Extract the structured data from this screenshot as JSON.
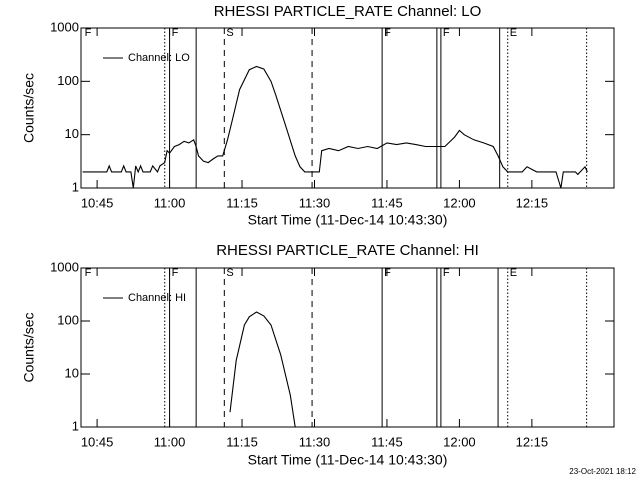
{
  "chart_data": [
    {
      "type": "line",
      "title": "RHESSI PARTICLE_RATE Channel: LO",
      "xlabel": "Start Time (11-Dec-14 10:43:30)",
      "ylabel": "Counts/sec",
      "x": [
        "10:42",
        "10:47",
        "10:47:30",
        "10:48",
        "10:50",
        "10:50:30",
        "10:51",
        "10:52",
        "10:52:30",
        "10:53",
        "10:53:30",
        "10:54",
        "10:54:30",
        "10:56",
        "10:56:30",
        "10:57:30",
        "10:58",
        "10:59",
        "10:59:30",
        "11:00",
        "11:01",
        "11:02",
        "11:03",
        "11:04",
        "11:05",
        "11:05:30",
        "11:06",
        "11:07",
        "11:08",
        "11:09",
        "11:10",
        "11:11",
        "11:12",
        "11:13",
        "11:14:30",
        "11:16:30",
        "11:18",
        "11:19:30",
        "11:21",
        "11:22",
        "11:24",
        "11:26",
        "11:27",
        "11:28",
        "11:31",
        "11:31:30",
        "11:33",
        "11:35",
        "11:37",
        "11:39",
        "11:41",
        "11:43",
        "11:45",
        "11:47",
        "11:49",
        "11:51",
        "11:53",
        "11:55",
        "11:57",
        "11:59",
        "12:00",
        "12:01",
        "12:03",
        "12:05",
        "12:07",
        "12:08",
        "12:09",
        "12:10",
        "12:13",
        "12:14",
        "12:16",
        "12:20",
        "12:21",
        "12:21:30",
        "12:24",
        "12:24:30",
        "12:26",
        "12:26:30"
      ],
      "series": [
        {
          "name": "Channel: LO",
          "color": "#000000",
          "values": [
            2,
            2,
            2.6,
            2,
            2,
            2.6,
            2,
            2,
            1,
            2.6,
            2,
            2.6,
            2,
            2,
            2.6,
            2,
            2.6,
            3,
            5,
            4.5,
            6,
            6.5,
            7.5,
            7,
            8,
            6,
            4,
            3.2,
            3,
            3.5,
            4,
            4,
            8,
            19,
            70,
            165,
            190,
            170,
            100,
            55,
            15,
            4,
            2.5,
            2,
            2,
            5,
            5.5,
            5,
            6,
            5.5,
            6,
            5.5,
            7,
            6.5,
            7,
            6.5,
            6,
            6,
            6,
            9,
            12,
            10,
            8,
            7,
            6,
            4,
            2.5,
            2,
            2,
            2.5,
            2,
            2,
            1,
            2,
            2,
            1.8,
            2.5,
            2
          ]
        }
      ],
      "xlim": [
        "10:41:40",
        "12:32"
      ],
      "xticks": [
        "10:45",
        "11:00",
        "11:15",
        "11:30",
        "11:45",
        "12:00",
        "12:15"
      ],
      "ylim": [
        1,
        1000
      ],
      "yticks": [
        1,
        10,
        100,
        1000
      ],
      "log_y": true,
      "legend": "upper left",
      "markers": [
        {
          "x": "10:42",
          "label": "F"
        },
        {
          "x": "10:59",
          "style": "dotted"
        },
        {
          "x": "11:00",
          "style": "solid",
          "label": "F"
        },
        {
          "x": "11:05:30",
          "style": "solid"
        },
        {
          "x": "11:11:20",
          "style": "dashed",
          "label": "S"
        },
        {
          "x": "11:29:30",
          "style": "dashed"
        },
        {
          "x": "11:44",
          "style": "solid",
          "label": "F"
        },
        {
          "x": "11:55:20",
          "style": "solid"
        },
        {
          "x": "11:56:10",
          "style": "solid",
          "label": "F"
        },
        {
          "x": "12:08:20",
          "style": "solid"
        },
        {
          "x": "12:10",
          "style": "dotted",
          "label": "E"
        },
        {
          "x": "12:26:20",
          "style": "dotted"
        }
      ]
    },
    {
      "type": "line",
      "title": "RHESSI PARTICLE_RATE Channel: HI",
      "xlabel": "Start Time (11-Dec-14 10:43:30)",
      "ylabel": "Counts/sec",
      "x": [
        "11:12:30",
        "11:13:48",
        "11:15:30",
        "11:16:30",
        "11:18",
        "11:19:30",
        "11:21",
        "11:23",
        "11:25",
        "11:26"
      ],
      "series": [
        {
          "name": "Channel: HI",
          "color": "#000000",
          "values": [
            1.9,
            18,
            84,
            120,
            148,
            125,
            84,
            23,
            4,
            1
          ]
        }
      ],
      "xlim": [
        "10:41:40",
        "12:32"
      ],
      "xticks": [
        "10:45",
        "11:00",
        "11:15",
        "11:30",
        "11:45",
        "12:00",
        "12:15"
      ],
      "ylim": [
        1,
        1000
      ],
      "yticks": [
        1,
        10,
        100,
        1000
      ],
      "log_y": true,
      "legend": "upper left",
      "markers": [
        {
          "x": "10:42",
          "label": "F"
        },
        {
          "x": "10:59",
          "style": "dotted"
        },
        {
          "x": "11:00",
          "style": "solid",
          "label": "F"
        },
        {
          "x": "11:05:30",
          "style": "solid"
        },
        {
          "x": "11:11:20",
          "style": "dashed",
          "label": "S"
        },
        {
          "x": "11:29:30",
          "style": "dashed"
        },
        {
          "x": "11:44",
          "style": "solid",
          "label": "F"
        },
        {
          "x": "11:55:20",
          "style": "solid"
        },
        {
          "x": "11:56:10",
          "style": "solid",
          "label": "F"
        },
        {
          "x": "12:08",
          "style": "solid"
        },
        {
          "x": "12:10",
          "style": "dotted",
          "label": "E"
        },
        {
          "x": "12:26:20",
          "style": "dotted"
        }
      ]
    }
  ],
  "footer": "23-Oct-2021 18:12"
}
